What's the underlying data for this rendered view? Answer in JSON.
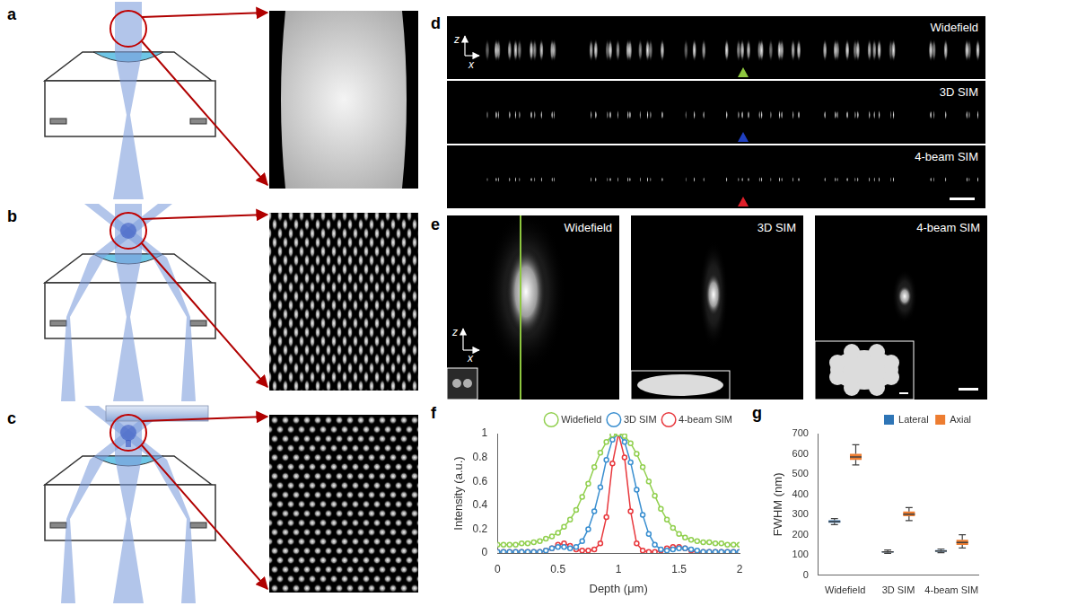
{
  "diagram": {
    "panel_labels": [
      "a",
      "b",
      "c",
      "d",
      "e",
      "f",
      "g"
    ],
    "d": {
      "image_labels": [
        "Widefield",
        "3D SIM",
        "4-beam SIM"
      ],
      "axis_labels": [
        "z",
        "x"
      ]
    },
    "e": {
      "image_labels": [
        "Widefield",
        "3D SIM",
        "4-beam SIM"
      ],
      "axis_labels": [
        "z",
        "x"
      ]
    }
  },
  "chart_data": [
    {
      "type": "line",
      "x_label": "Depth (μm)",
      "y_label": "Intensity (a.u.)",
      "x": [
        0,
        0.05,
        0.1,
        0.15,
        0.2,
        0.25,
        0.3,
        0.35,
        0.4,
        0.45,
        0.5,
        0.55,
        0.6,
        0.65,
        0.7,
        0.75,
        0.8,
        0.85,
        0.9,
        0.95,
        1,
        1.05,
        1.1,
        1.15,
        1.2,
        1.25,
        1.3,
        1.35,
        1.4,
        1.45,
        1.5,
        1.55,
        1.6,
        1.65,
        1.7,
        1.75,
        1.8,
        1.85,
        1.9,
        1.95,
        2
      ],
      "series": [
        {
          "name": "Widefield",
          "color": "#92d050",
          "marker": "circle",
          "values": [
            0.07,
            0.07,
            0.07,
            0.07,
            0.08,
            0.08,
            0.09,
            0.1,
            0.12,
            0.14,
            0.17,
            0.22,
            0.28,
            0.36,
            0.47,
            0.58,
            0.72,
            0.84,
            0.93,
            0.99,
            1,
            0.98,
            0.92,
            0.83,
            0.72,
            0.6,
            0.48,
            0.37,
            0.28,
            0.21,
            0.16,
            0.13,
            0.11,
            0.1,
            0.09,
            0.09,
            0.08,
            0.08,
            0.07,
            0.07,
            0.07
          ]
        },
        {
          "name": "3D SIM",
          "color": "#3a8fd0",
          "marker": "circle",
          "values": [
            0.01,
            0.01,
            0.01,
            0.01,
            0.01,
            0.01,
            0.01,
            0.01,
            0.02,
            0.04,
            0.05,
            0.05,
            0.04,
            0.05,
            0.1,
            0.2,
            0.35,
            0.55,
            0.78,
            0.95,
            1,
            0.93,
            0.76,
            0.53,
            0.32,
            0.16,
            0.07,
            0.03,
            0.02,
            0.03,
            0.04,
            0.04,
            0.03,
            0.02,
            0.01,
            0.01,
            0.01,
            0.01,
            0.01,
            0.01,
            0.01
          ]
        },
        {
          "name": "4-beam SIM",
          "color": "#e8383d",
          "marker": "circle",
          "values": [
            0.01,
            0.01,
            0.01,
            0.01,
            0.01,
            0.01,
            0.01,
            0.01,
            0.02,
            0.04,
            0.07,
            0.08,
            0.06,
            0.03,
            0.02,
            0.02,
            0.03,
            0.08,
            0.3,
            0.75,
            1,
            0.8,
            0.35,
            0.08,
            0.02,
            0.01,
            0.01,
            0.02,
            0.04,
            0.05,
            0.05,
            0.04,
            0.02,
            0.01,
            0.01,
            0.01,
            0.01,
            0.01,
            0.01,
            0.01,
            0.01
          ]
        }
      ],
      "xlim": [
        0,
        2
      ],
      "xticks": [
        0,
        0.5,
        1,
        1.5,
        2
      ],
      "ylim": [
        0,
        1
      ],
      "yticks": [
        0,
        0.2,
        0.4,
        0.6,
        0.8,
        1
      ],
      "legend": "upper right",
      "grid": false
    },
    {
      "type": "box",
      "y_label": "FWHM (nm)",
      "categories": [
        "Widefield",
        "3D SIM",
        "4-beam SIM"
      ],
      "series": [
        {
          "name": "Lateral",
          "color": "#2e75b6",
          "min": [
            250,
            108,
            112
          ],
          "q1": [
            260,
            113,
            117
          ],
          "median": [
            265,
            116,
            120
          ],
          "q3": [
            272,
            119,
            124
          ],
          "max": [
            280,
            125,
            130
          ]
        },
        {
          "name": "Axial",
          "color": "#ed7d31",
          "min": [
            545,
            270,
            135
          ],
          "q1": [
            570,
            292,
            150
          ],
          "median": [
            585,
            302,
            162
          ],
          "q3": [
            600,
            315,
            175
          ],
          "max": [
            645,
            335,
            200
          ]
        }
      ],
      "ylim": [
        0,
        700
      ],
      "yticks": [
        0,
        100,
        200,
        300,
        400,
        500,
        600,
        700
      ],
      "legend": "upper right",
      "grid": false
    }
  ]
}
